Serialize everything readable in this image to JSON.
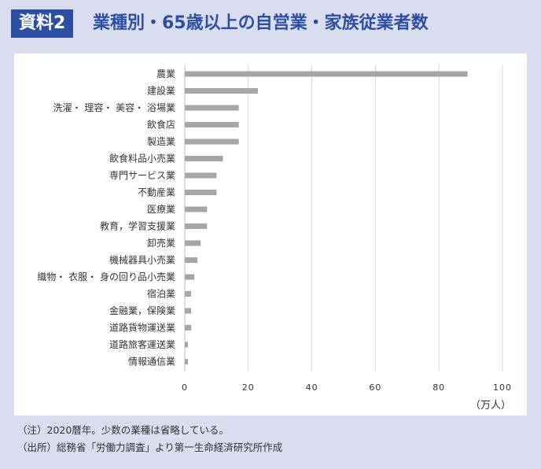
{
  "header": {
    "badge": "資料2",
    "title": "業種別・65歳以上の自営業・家族従業者数"
  },
  "chart_data": {
    "type": "bar",
    "orientation": "horizontal",
    "categories": [
      "農業",
      "建設業",
      "洗濯・ 理容・ 美容・ 浴場業",
      "飲食店",
      "製造業",
      "飲食料品小売業",
      "専門サービス業",
      "不動産業",
      "医療業",
      "教育，学習支援業",
      "卸売業",
      "機械器具小売業",
      "織物・ 衣服・ 身の回り品小売業",
      "宿泊業",
      "金融業，保険業",
      "道路貨物運送業",
      "道路旅客運送業",
      "情報通信業"
    ],
    "values": [
      89,
      23,
      17,
      17,
      17,
      12,
      10,
      10,
      7,
      7,
      5,
      4,
      3,
      2,
      2,
      2,
      1,
      1
    ],
    "xlim": [
      0,
      100
    ],
    "xticks": [
      "0",
      "20",
      "40",
      "60",
      "80",
      "100"
    ],
    "xlabel": "（万人）",
    "grid": "vertical",
    "bar_color": "#a6a6a6",
    "grid_color": "#d9d9d9"
  },
  "notes": {
    "line1": "（注）2020暦年。少数の業種は省略している。",
    "line2": "（出所）総務省「労働力調査」より第一生命経済研究所作成"
  },
  "colors": {
    "accent": "#2d4fa3",
    "background": "#d9dded"
  }
}
